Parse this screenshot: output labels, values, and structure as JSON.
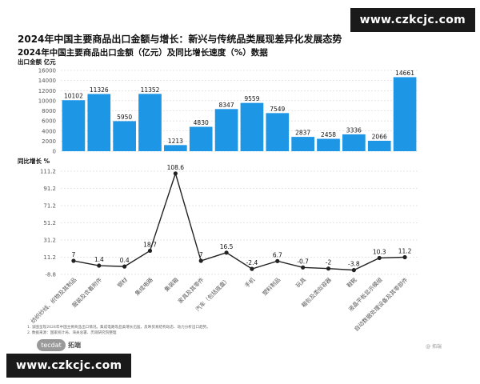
{
  "watermark": "www.czkcjc.com",
  "title": "2024年中国主要商品出口金额与增长：新兴与传统品类展现差异化发展态势",
  "subtitle": "2024年中国主要商品出口金额（亿元）及同比增长速度（%）数据",
  "notes": [
    "1. 该图呈现2024年中国主要商品出口情况。集成电路等品类增长迅猛，反映贸易结构动态、动力分析出口趋势。",
    "2. 数据来源：国家统计局、海关总署、历观研究院整理"
  ],
  "logo": {
    "mark": "tecdat",
    "text": "拓端"
  },
  "credit": "@ 拓端",
  "colors": {
    "bar": "#1e96e6",
    "line": "#222222",
    "grid": "#cccccc"
  },
  "chart_data": [
    {
      "type": "bar",
      "ylabel": "出口金额  亿元",
      "ylim": [
        0,
        16000
      ],
      "yticks": [
        0,
        2000,
        4000,
        6000,
        8000,
        10000,
        12000,
        14000,
        16000
      ],
      "categories": [
        "纺织纱线、织物及其制品",
        "服装及衣着附件",
        "钢材",
        "集成电路",
        "集装箱",
        "家具及其零件",
        "汽车（包括底盘）",
        "手机",
        "塑料制品",
        "玩具",
        "箱包及类似容器",
        "鞋靴",
        "液晶平板显示模组",
        "自动数据处理设备及其零部件"
      ],
      "values": [
        10102,
        11326,
        5950,
        11352,
        1213,
        4830,
        8347,
        9559,
        7549,
        2837,
        2458,
        3336,
        2066,
        14661
      ]
    },
    {
      "type": "line",
      "ylabel": "同比增长  %",
      "ylim": [
        -8.8,
        111.2
      ],
      "yticks": [
        -8.8,
        11.2,
        31.2,
        51.2,
        71.2,
        91.2,
        111.2
      ],
      "categories": [
        "纺织纱线、织物及其制品",
        "服装及衣着附件",
        "钢材",
        "集成电路",
        "集装箱",
        "家具及其零件",
        "汽车（包括底盘）",
        "手机",
        "塑料制品",
        "玩具",
        "箱包及类似容器",
        "鞋靴",
        "液晶平板显示模组",
        "自动数据处理设备及其零部件"
      ],
      "values": [
        7,
        1.4,
        0.4,
        18.7,
        108.6,
        7,
        16.5,
        -2.4,
        6.7,
        -0.7,
        -2,
        -3.8,
        10.3,
        11.2
      ]
    }
  ]
}
